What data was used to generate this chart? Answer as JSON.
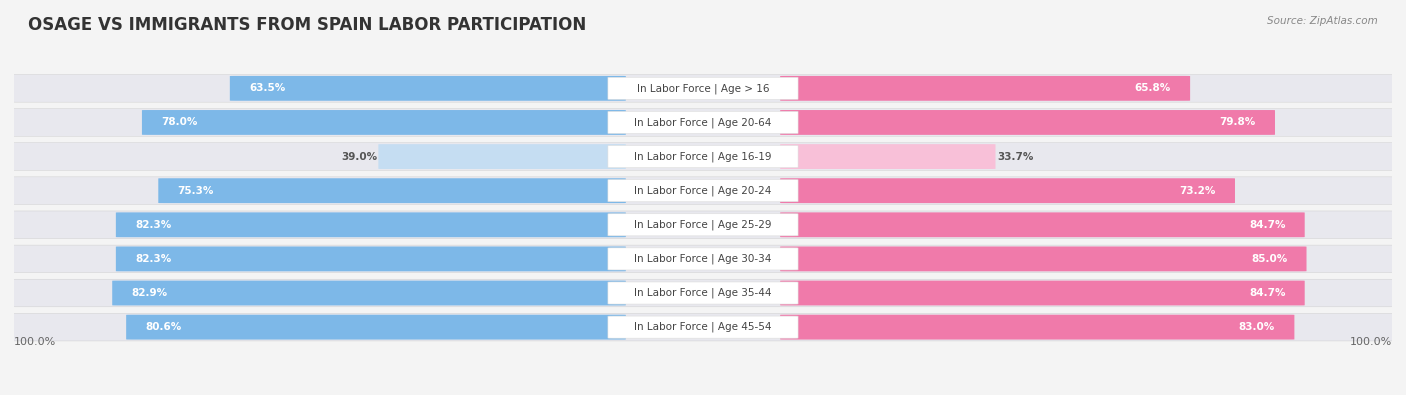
{
  "title": "OSAGE VS IMMIGRANTS FROM SPAIN LABOR PARTICIPATION",
  "source": "Source: ZipAtlas.com",
  "categories": [
    "In Labor Force | Age > 16",
    "In Labor Force | Age 20-64",
    "In Labor Force | Age 16-19",
    "In Labor Force | Age 20-24",
    "In Labor Force | Age 25-29",
    "In Labor Force | Age 30-34",
    "In Labor Force | Age 35-44",
    "In Labor Force | Age 45-54"
  ],
  "osage_values": [
    63.5,
    78.0,
    39.0,
    75.3,
    82.3,
    82.3,
    82.9,
    80.6
  ],
  "spain_values": [
    65.8,
    79.8,
    33.7,
    73.2,
    84.7,
    85.0,
    84.7,
    83.0
  ],
  "osage_color": "#7db8e8",
  "osage_color_light": "#c5ddf2",
  "spain_color": "#f07aaa",
  "spain_color_light": "#f8c0d8",
  "row_bg_color": "#e8e8ee",
  "label_bg_color": "#ffffff",
  "background_color": "#f4f4f4",
  "title_fontsize": 12,
  "label_fontsize": 7.5,
  "value_fontsize": 7.5,
  "max_val": 100.0,
  "legend_osage": "Osage",
  "legend_spain": "Immigrants from Spain"
}
